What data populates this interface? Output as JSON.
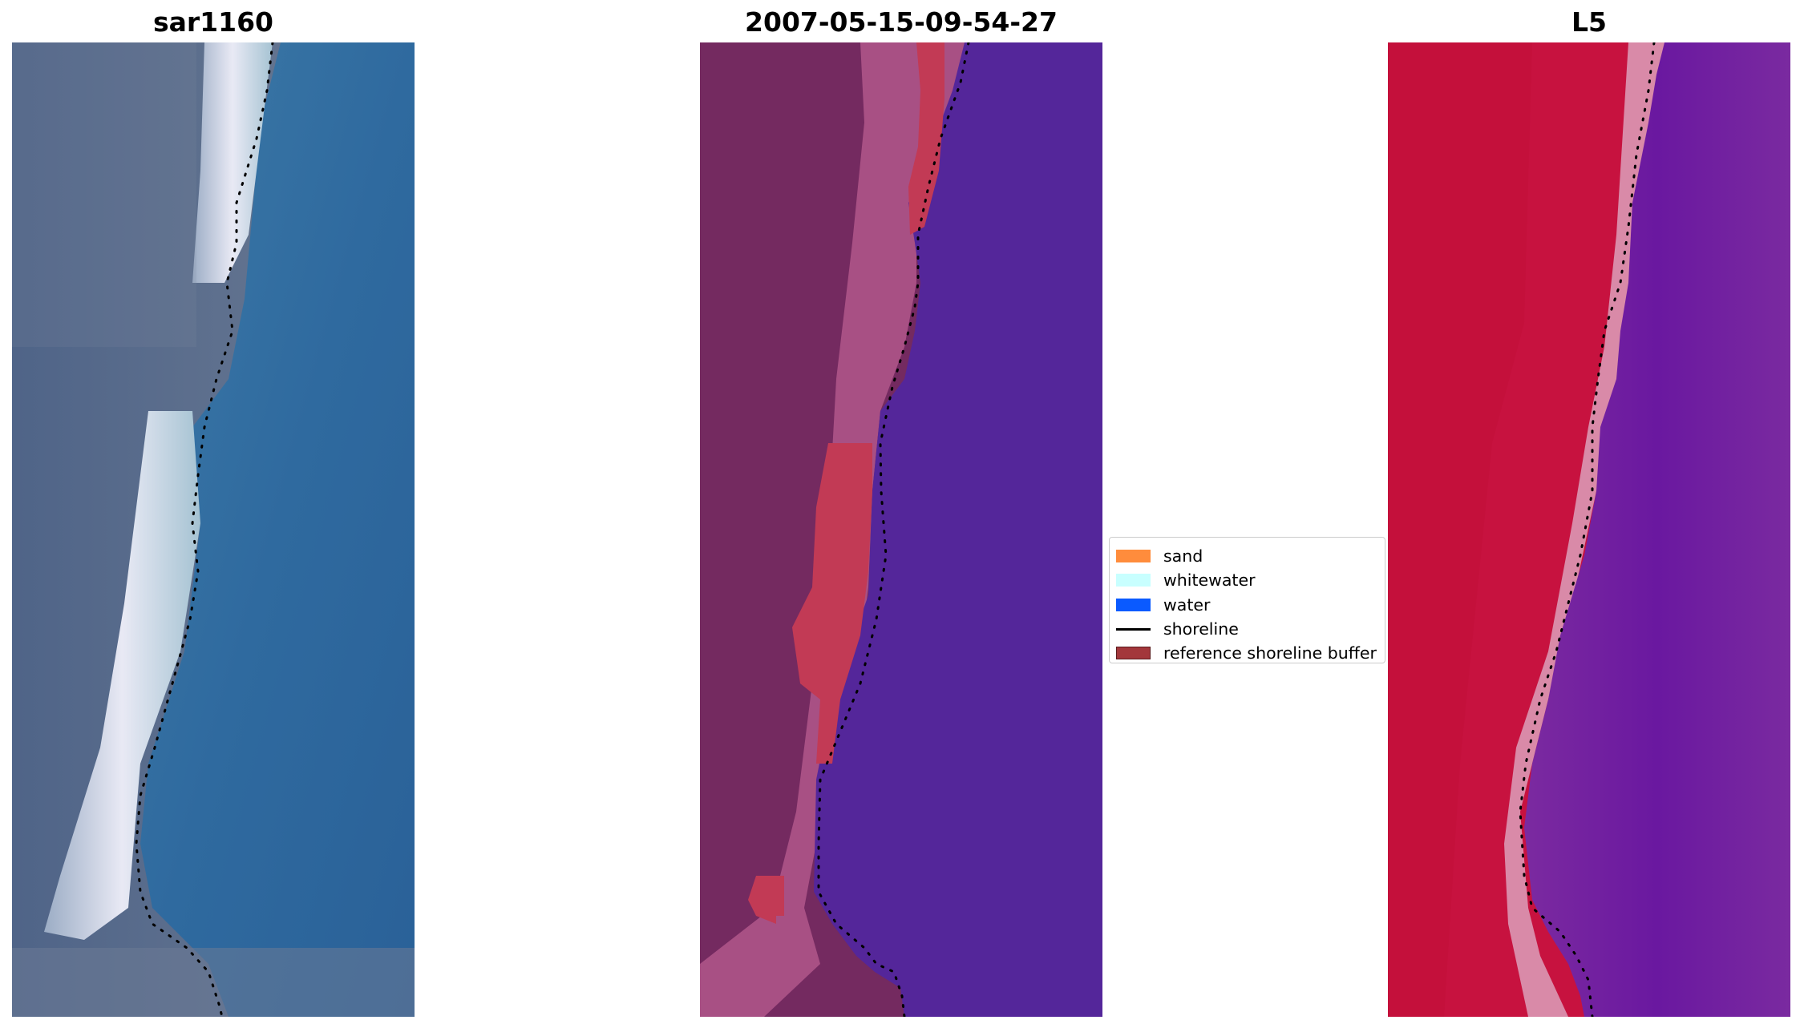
{
  "panels": [
    {
      "title": "sar1160"
    },
    {
      "title": "2007-05-15-09-54-27"
    },
    {
      "title": "L5"
    }
  ],
  "legend": {
    "items": [
      {
        "label": "sand",
        "color": "#ff8c3c",
        "kind": "patch"
      },
      {
        "label": "whitewater",
        "color": "#c8ffff",
        "kind": "patch"
      },
      {
        "label": "water",
        "color": "#0a5aff",
        "kind": "patch"
      },
      {
        "label": "shoreline",
        "color": "#000000",
        "kind": "line"
      },
      {
        "label": "reference shoreline buffer",
        "color": "#a3373b",
        "kind": "patch"
      }
    ]
  },
  "colors": {
    "rgb_water": "#2f6a9f",
    "rgb_land": "#5a6d8a",
    "rgb_whitewater": "#e8e8f5",
    "class_land": "#7a2a62",
    "class_land_edge": "#b05a8a",
    "class_water": "#54269a",
    "class_buffer": "#c23a55",
    "index_land": "#c5123f",
    "index_edge": "#d98aa8",
    "index_water": "#6d1c9a"
  }
}
